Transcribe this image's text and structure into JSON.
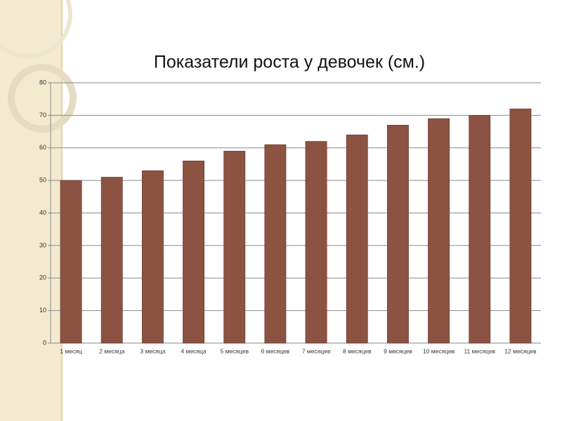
{
  "chart_data": {
    "type": "bar",
    "title": "Показатели роста у девочек (см.)",
    "categories": [
      "1 месяц",
      "2 месяца",
      "3 месяца",
      "4 месяца",
      "5 месяцев",
      "6 месяцев",
      "7 месяцев",
      "8 месяцев",
      "9 месяцев",
      "10 месяцев",
      "11 месяцев",
      "12 месяцев"
    ],
    "values": [
      50,
      51,
      53,
      56,
      59,
      61,
      62,
      64,
      67,
      69,
      70,
      72
    ],
    "color": "#8c5242",
    "ylim": [
      0,
      80
    ],
    "yticks": [
      0,
      10,
      20,
      30,
      40,
      50,
      60,
      70,
      80
    ],
    "grid": true
  }
}
